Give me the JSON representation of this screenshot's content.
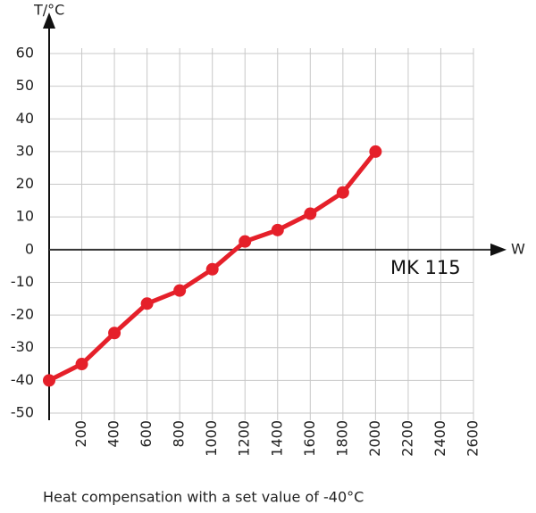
{
  "chart_data": {
    "type": "line",
    "y_label": "T/°C",
    "x_label": "W",
    "caption": "Heat compensation with a set value of -40°C",
    "x": [
      0,
      200,
      400,
      600,
      800,
      1000,
      1200,
      1400,
      1600,
      1800,
      2000
    ],
    "series": [
      {
        "name": "MK 115",
        "color": "#e5202a",
        "values": [
          -40,
          -35,
          -25.5,
          -16.5,
          -12.5,
          -6,
          2.5,
          6,
          11,
          17.5,
          30
        ]
      }
    ],
    "xlim": [
      0,
      2600
    ],
    "xticks": [
      200,
      400,
      600,
      800,
      1000,
      1200,
      1400,
      1600,
      1800,
      2000,
      2200,
      2400,
      2600
    ],
    "ylim": [
      -50,
      60
    ],
    "yticks": [
      -50,
      -40,
      -30,
      -20,
      -10,
      0,
      10,
      20,
      30,
      40,
      50,
      60
    ],
    "grid": true
  }
}
